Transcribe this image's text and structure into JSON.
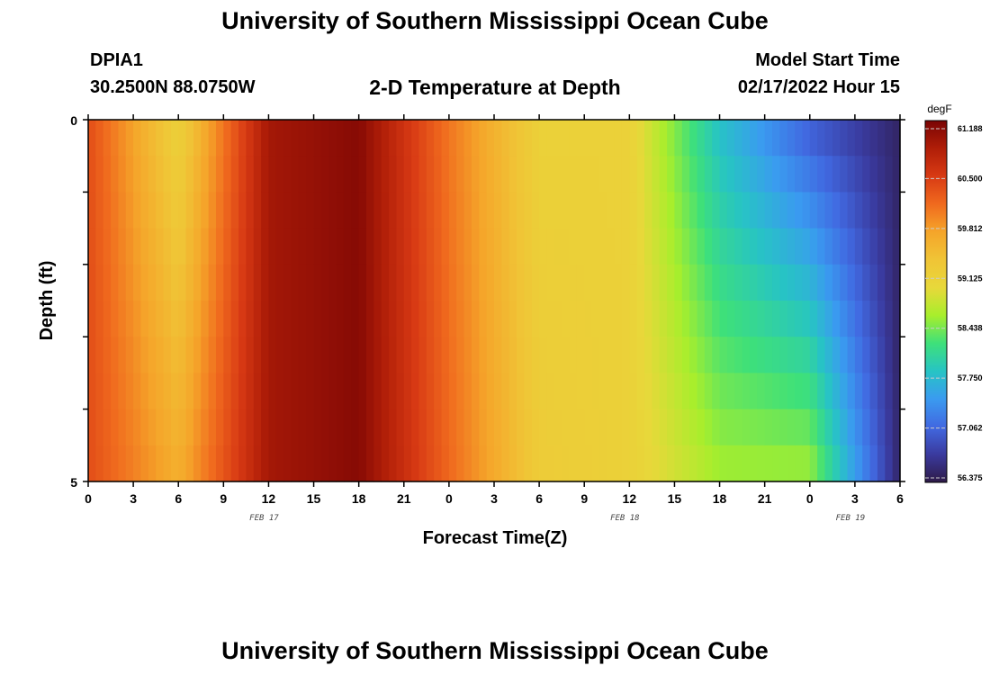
{
  "header": {
    "title": "University of Southern Mississippi Ocean Cube",
    "station_id": "DPIA1",
    "coords": "30.2500N  88.0750W",
    "plot_title": "2-D Temperature at Depth",
    "start_label": "Model Start Time",
    "start_value": "02/17/2022 Hour 15"
  },
  "footer": {
    "title": "University of Southern Mississippi Ocean Cube"
  },
  "colors": {
    "colormap": [
      "#2e1a47",
      "#3a3a9e",
      "#4169e1",
      "#3a9bf0",
      "#27c4c4",
      "#3ee07a",
      "#a8ee2c",
      "#e8d83a",
      "#f0c436",
      "#f5a52a",
      "#f06a1e",
      "#d83a14",
      "#b01e08",
      "#7a0404"
    ]
  },
  "chart_data": {
    "type": "heatmap",
    "title": "2-D Temperature at Depth",
    "xlabel": "Forecast Time(Z)",
    "ylabel": "Depth (ft)",
    "x_tick_labels": [
      "0",
      "3",
      "6",
      "9",
      "12",
      "15",
      "18",
      "21",
      "0",
      "3",
      "6",
      "9",
      "12",
      "15",
      "18",
      "21",
      "0",
      "3",
      "6"
    ],
    "date_labels": [
      "FEB 17",
      "FEB 18",
      "FEB 19"
    ],
    "y_tick_labels": [
      "0",
      "5"
    ],
    "ylim": [
      0,
      5
    ],
    "y_inverted": true,
    "colorbar": {
      "unit": "degF",
      "min": 56.375,
      "max": 61.188,
      "tick_labels": [
        "61.188",
        "60.500",
        "59.812",
        "59.125",
        "58.438",
        "57.750",
        "57.062",
        "56.375"
      ]
    },
    "depth_layers": [
      0,
      1,
      2,
      3,
      4
    ],
    "time_hours_approx": [
      0,
      6,
      12,
      18,
      24,
      30,
      36,
      42,
      48,
      54
    ],
    "surface_temperature_degF_approx": [
      60.3,
      59.1,
      60.9,
      61.1,
      60.0,
      59.1,
      59.1,
      57.8,
      57.0,
      56.5
    ],
    "bottom_temperature_degF_approx": [
      60.3,
      59.6,
      60.9,
      61.1,
      60.1,
      59.2,
      59.1,
      58.6,
      58.6,
      56.5
    ]
  }
}
